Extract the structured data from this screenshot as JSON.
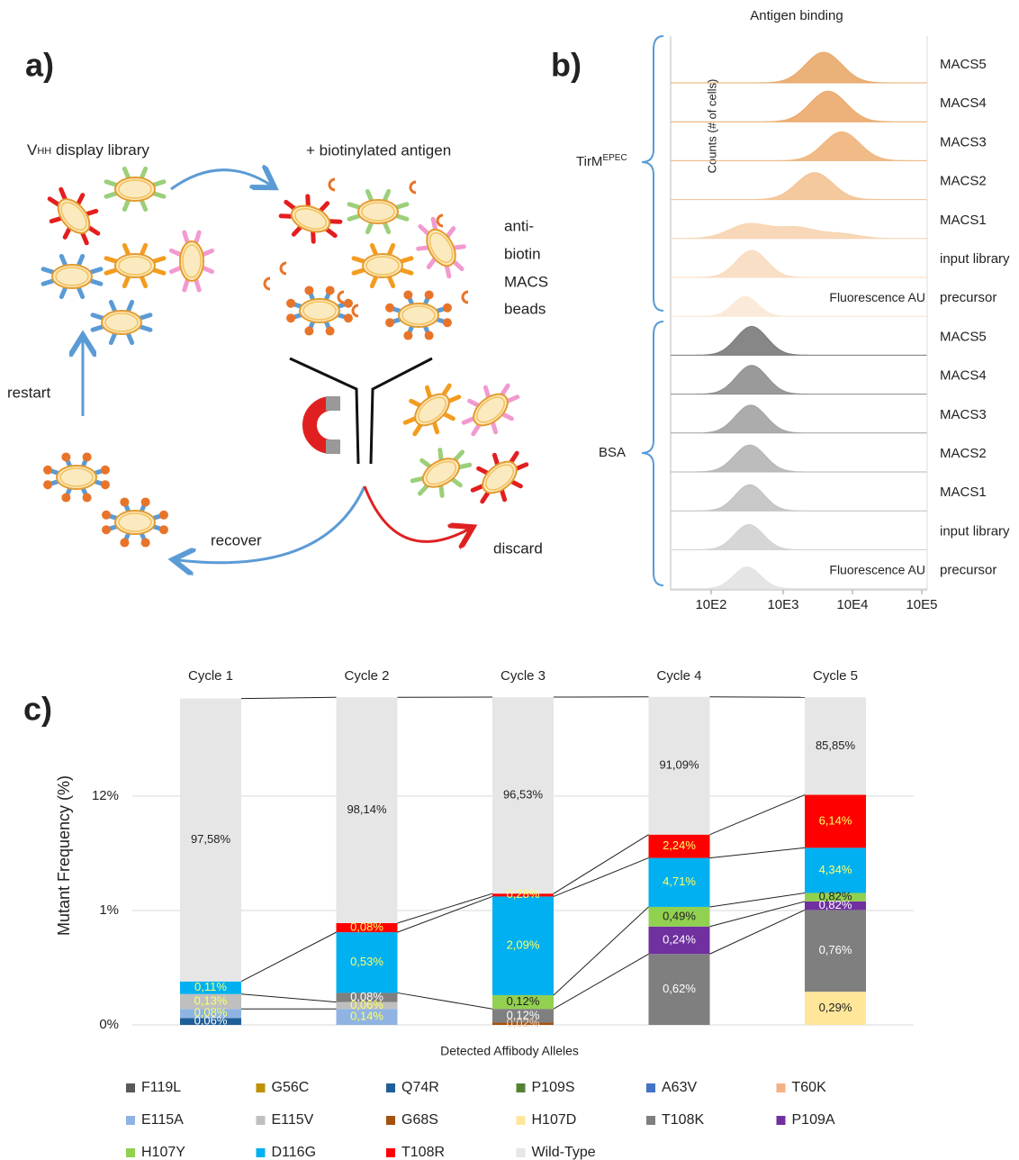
{
  "panel_a": {
    "label": "a)",
    "library": {
      "main": "V",
      "subscript": "HH",
      "rest": " display library"
    },
    "antigen": "+ biotinylated antigen",
    "beads": [
      "anti-",
      "biotin",
      "MACS",
      "beads"
    ],
    "restart": "restart",
    "recover": "recover",
    "discard": "discard"
  },
  "panel_b": {
    "label": "b)",
    "title": "Antigen binding",
    "y_label": "Counts (# of cells)",
    "x_label": "Fluorescence AU",
    "xticks": [
      "10E2",
      "10E3",
      "10E4",
      "10E5"
    ],
    "groups": [
      {
        "name": "TirM",
        "superscript": "EPEC",
        "rows": [
          {
            "label": "MACS5",
            "color": "#e8a96a"
          },
          {
            "label": "MACS4",
            "color": "#eba96a"
          },
          {
            "label": "MACS3",
            "color": "#f0b47a"
          },
          {
            "label": "MACS2",
            "color": "#f3c392"
          },
          {
            "label": "MACS1",
            "color": "#f7d4b0"
          },
          {
            "label": "input library",
            "color": "#f8dcc0"
          },
          {
            "label": "precursor",
            "color": "#fbe8d6"
          }
        ]
      },
      {
        "name": "BSA",
        "rows": [
          {
            "label": "MACS5",
            "color": "#7a7a7a"
          },
          {
            "label": "MACS4",
            "color": "#8f8f8f"
          },
          {
            "label": "MACS3",
            "color": "#a3a3a3"
          },
          {
            "label": "MACS2",
            "color": "#b5b5b5"
          },
          {
            "label": "MACS1",
            "color": "#c2c2c2"
          },
          {
            "label": "input library",
            "color": "#d2d2d2"
          },
          {
            "label": "precursor",
            "color": "#e2e2e2"
          }
        ]
      }
    ]
  },
  "chart_data": {
    "type": "bar",
    "label": "c)",
    "stacked": true,
    "y_label": "Mutant Frequency (%)",
    "x_label": "Detected Affibody Alleles",
    "categories": [
      "Cycle 1",
      "Cycle 2",
      "Cycle 3",
      "Cycle 4",
      "Cycle 5"
    ],
    "ylim": [
      0,
      100
    ],
    "yticks": [
      {
        "value": 0,
        "label": "0%"
      },
      {
        "value": 1,
        "label": "1%"
      },
      {
        "value": 12,
        "label": "12%"
      }
    ],
    "grid": true,
    "series": [
      {
        "name": "F119L",
        "color": "#595959",
        "label_color": "#ffffff",
        "values": [
          null,
          null,
          null,
          null,
          null
        ],
        "value_labels": [
          null,
          null,
          null,
          null,
          null
        ]
      },
      {
        "name": "G56C",
        "color": "#bf9000",
        "label_color": "#ffffff",
        "values": [
          null,
          null,
          null,
          null,
          null
        ],
        "value_labels": [
          null,
          null,
          null,
          null,
          null
        ]
      },
      {
        "name": "Q74R",
        "color": "#1f5f99",
        "label_color": "#ffffff",
        "values": [
          0.06,
          null,
          null,
          null,
          null
        ],
        "value_labels": [
          "0,06%",
          null,
          null,
          null,
          null
        ]
      },
      {
        "name": "P109S",
        "color": "#548235",
        "label_color": "#ffffff",
        "values": [
          null,
          null,
          null,
          null,
          null
        ],
        "value_labels": [
          null,
          null,
          null,
          null,
          null
        ]
      },
      {
        "name": "A63V",
        "color": "#4472c4",
        "label_color": "#ffffff",
        "values": [
          null,
          null,
          null,
          null,
          null
        ],
        "value_labels": [
          null,
          null,
          null,
          null,
          null
        ]
      },
      {
        "name": "T60K",
        "color": "#f4b183",
        "label_color": "#ffffff",
        "values": [
          null,
          null,
          null,
          null,
          null
        ],
        "value_labels": [
          null,
          null,
          null,
          null,
          null
        ]
      },
      {
        "name": "E115A",
        "color": "#8fb4e3",
        "label_color": "#ffff66",
        "values": [
          0.08,
          0.14,
          null,
          null,
          null
        ],
        "value_labels": [
          "0,08%",
          "0,14%",
          null,
          null,
          null
        ]
      },
      {
        "name": "E115V",
        "color": "#bfbfbf",
        "label_color": "#ffff66",
        "values": [
          0.13,
          0.06,
          null,
          null,
          null
        ],
        "value_labels": [
          "0,13%",
          "0,06%",
          null,
          null,
          null
        ]
      },
      {
        "name": "G68S",
        "color": "#a5520f",
        "label_color": "#f4d0b0",
        "values": [
          null,
          null,
          0.02,
          null,
          null
        ],
        "value_labels": [
          null,
          null,
          "0,02%",
          null,
          null
        ]
      },
      {
        "name": "H107D",
        "color": "#ffe699",
        "label_color": "#222222",
        "values": [
          null,
          null,
          null,
          null,
          0.29
        ],
        "value_labels": [
          null,
          null,
          null,
          null,
          "0,29%"
        ]
      },
      {
        "name": "T108K",
        "color": "#7f7f7f",
        "label_color": "#ffffff",
        "values": [
          null,
          0.08,
          0.12,
          0.62,
          0.76
        ],
        "value_labels": [
          null,
          "0,08%",
          "0,12%",
          "0,62%",
          "0,76%"
        ]
      },
      {
        "name": "P109A",
        "color": "#7030a0",
        "label_color": "#ffffff",
        "values": [
          null,
          null,
          null,
          0.24,
          0.82
        ],
        "value_labels": [
          null,
          null,
          null,
          "0,24%",
          "0,82%"
        ]
      },
      {
        "name": "H107Y",
        "color": "#92d050",
        "label_color": "#222222",
        "values": [
          null,
          null,
          0.12,
          0.49,
          0.82
        ],
        "value_labels": [
          null,
          null,
          "0,12%",
          "0,49%",
          "0,82%"
        ]
      },
      {
        "name": "D116G",
        "color": "#00b0f0",
        "label_color": "#ffff66",
        "values": [
          0.11,
          0.53,
          2.09,
          4.71,
          4.34
        ],
        "value_labels": [
          "0,11%",
          "0,53%",
          "2,09%",
          "4,71%",
          "4,34%"
        ]
      },
      {
        "name": "T108R",
        "color": "#ff0000",
        "label_color": "#ffff66",
        "values": [
          null,
          0.08,
          0.28,
          2.24,
          6.14
        ],
        "value_labels": [
          null,
          "0,08%",
          "0,28%",
          "2,24%",
          "6,14%"
        ]
      },
      {
        "name": "Wild-Type",
        "color": "#e7e6e6",
        "label_color": "#222222",
        "values": [
          97.58,
          98.14,
          96.53,
          91.09,
          85.85
        ],
        "value_labels": [
          "97,58%",
          "98,14%",
          "96,53%",
          "91,09%",
          "85,85%"
        ]
      }
    ]
  }
}
